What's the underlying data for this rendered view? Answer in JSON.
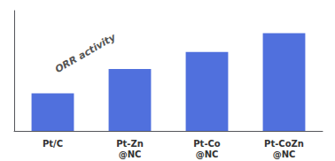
{
  "chart_data": {
    "type": "bar",
    "categories": [
      "Pt/C",
      "Pt-Zn\n@NC",
      "Pt-Co\n@NC",
      "Pt-CoZn\n@NC"
    ],
    "values": [
      1.0,
      1.65,
      2.1,
      2.6
    ],
    "ylim": [
      0,
      3.2
    ],
    "grid": false,
    "tick_labels": "x",
    "annotation": "ORR activity"
  }
}
